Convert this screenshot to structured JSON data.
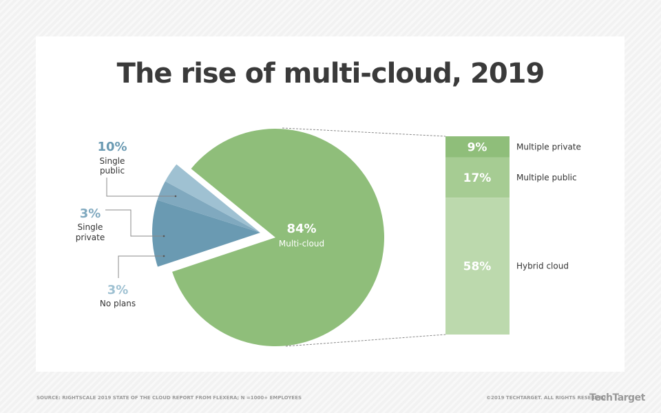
{
  "chart_data": {
    "type": "pie",
    "title": "The rise of multi-cloud, 2019",
    "slices": [
      {
        "label": "Multi-cloud",
        "value": 84,
        "display": "84%",
        "color": "#8fbe7a"
      },
      {
        "label": "Single public",
        "value": 10,
        "display": "10%",
        "color": "#6a9ab2"
      },
      {
        "label": "Single private",
        "value": 3,
        "display": "3%",
        "color": "#80a9bf"
      },
      {
        "label": "No plans",
        "value": 3,
        "display": "3%",
        "color": "#9fc1d2"
      }
    ],
    "breakdown": {
      "of": "Multi-cloud",
      "type": "stacked-bar",
      "segments": [
        {
          "label": "Multiple private",
          "value": 9,
          "display": "9%",
          "color": "#8fbe7a"
        },
        {
          "label": "Multiple public",
          "value": 17,
          "display": "17%",
          "color": "#a6cc93"
        },
        {
          "label": "Hybrid cloud",
          "value": 58,
          "display": "58%",
          "color": "#bcd9ad"
        }
      ]
    }
  },
  "footer": {
    "source": "SOURCE: RIGHTSCALE 2019 STATE OF THE CLOUD REPORT FROM FLEXERA; N =1000+ EMPLOYEES",
    "copyright": "©2019 TECHTARGET. ALL RIGHTS RESERVED",
    "logo": "TechTarget"
  }
}
